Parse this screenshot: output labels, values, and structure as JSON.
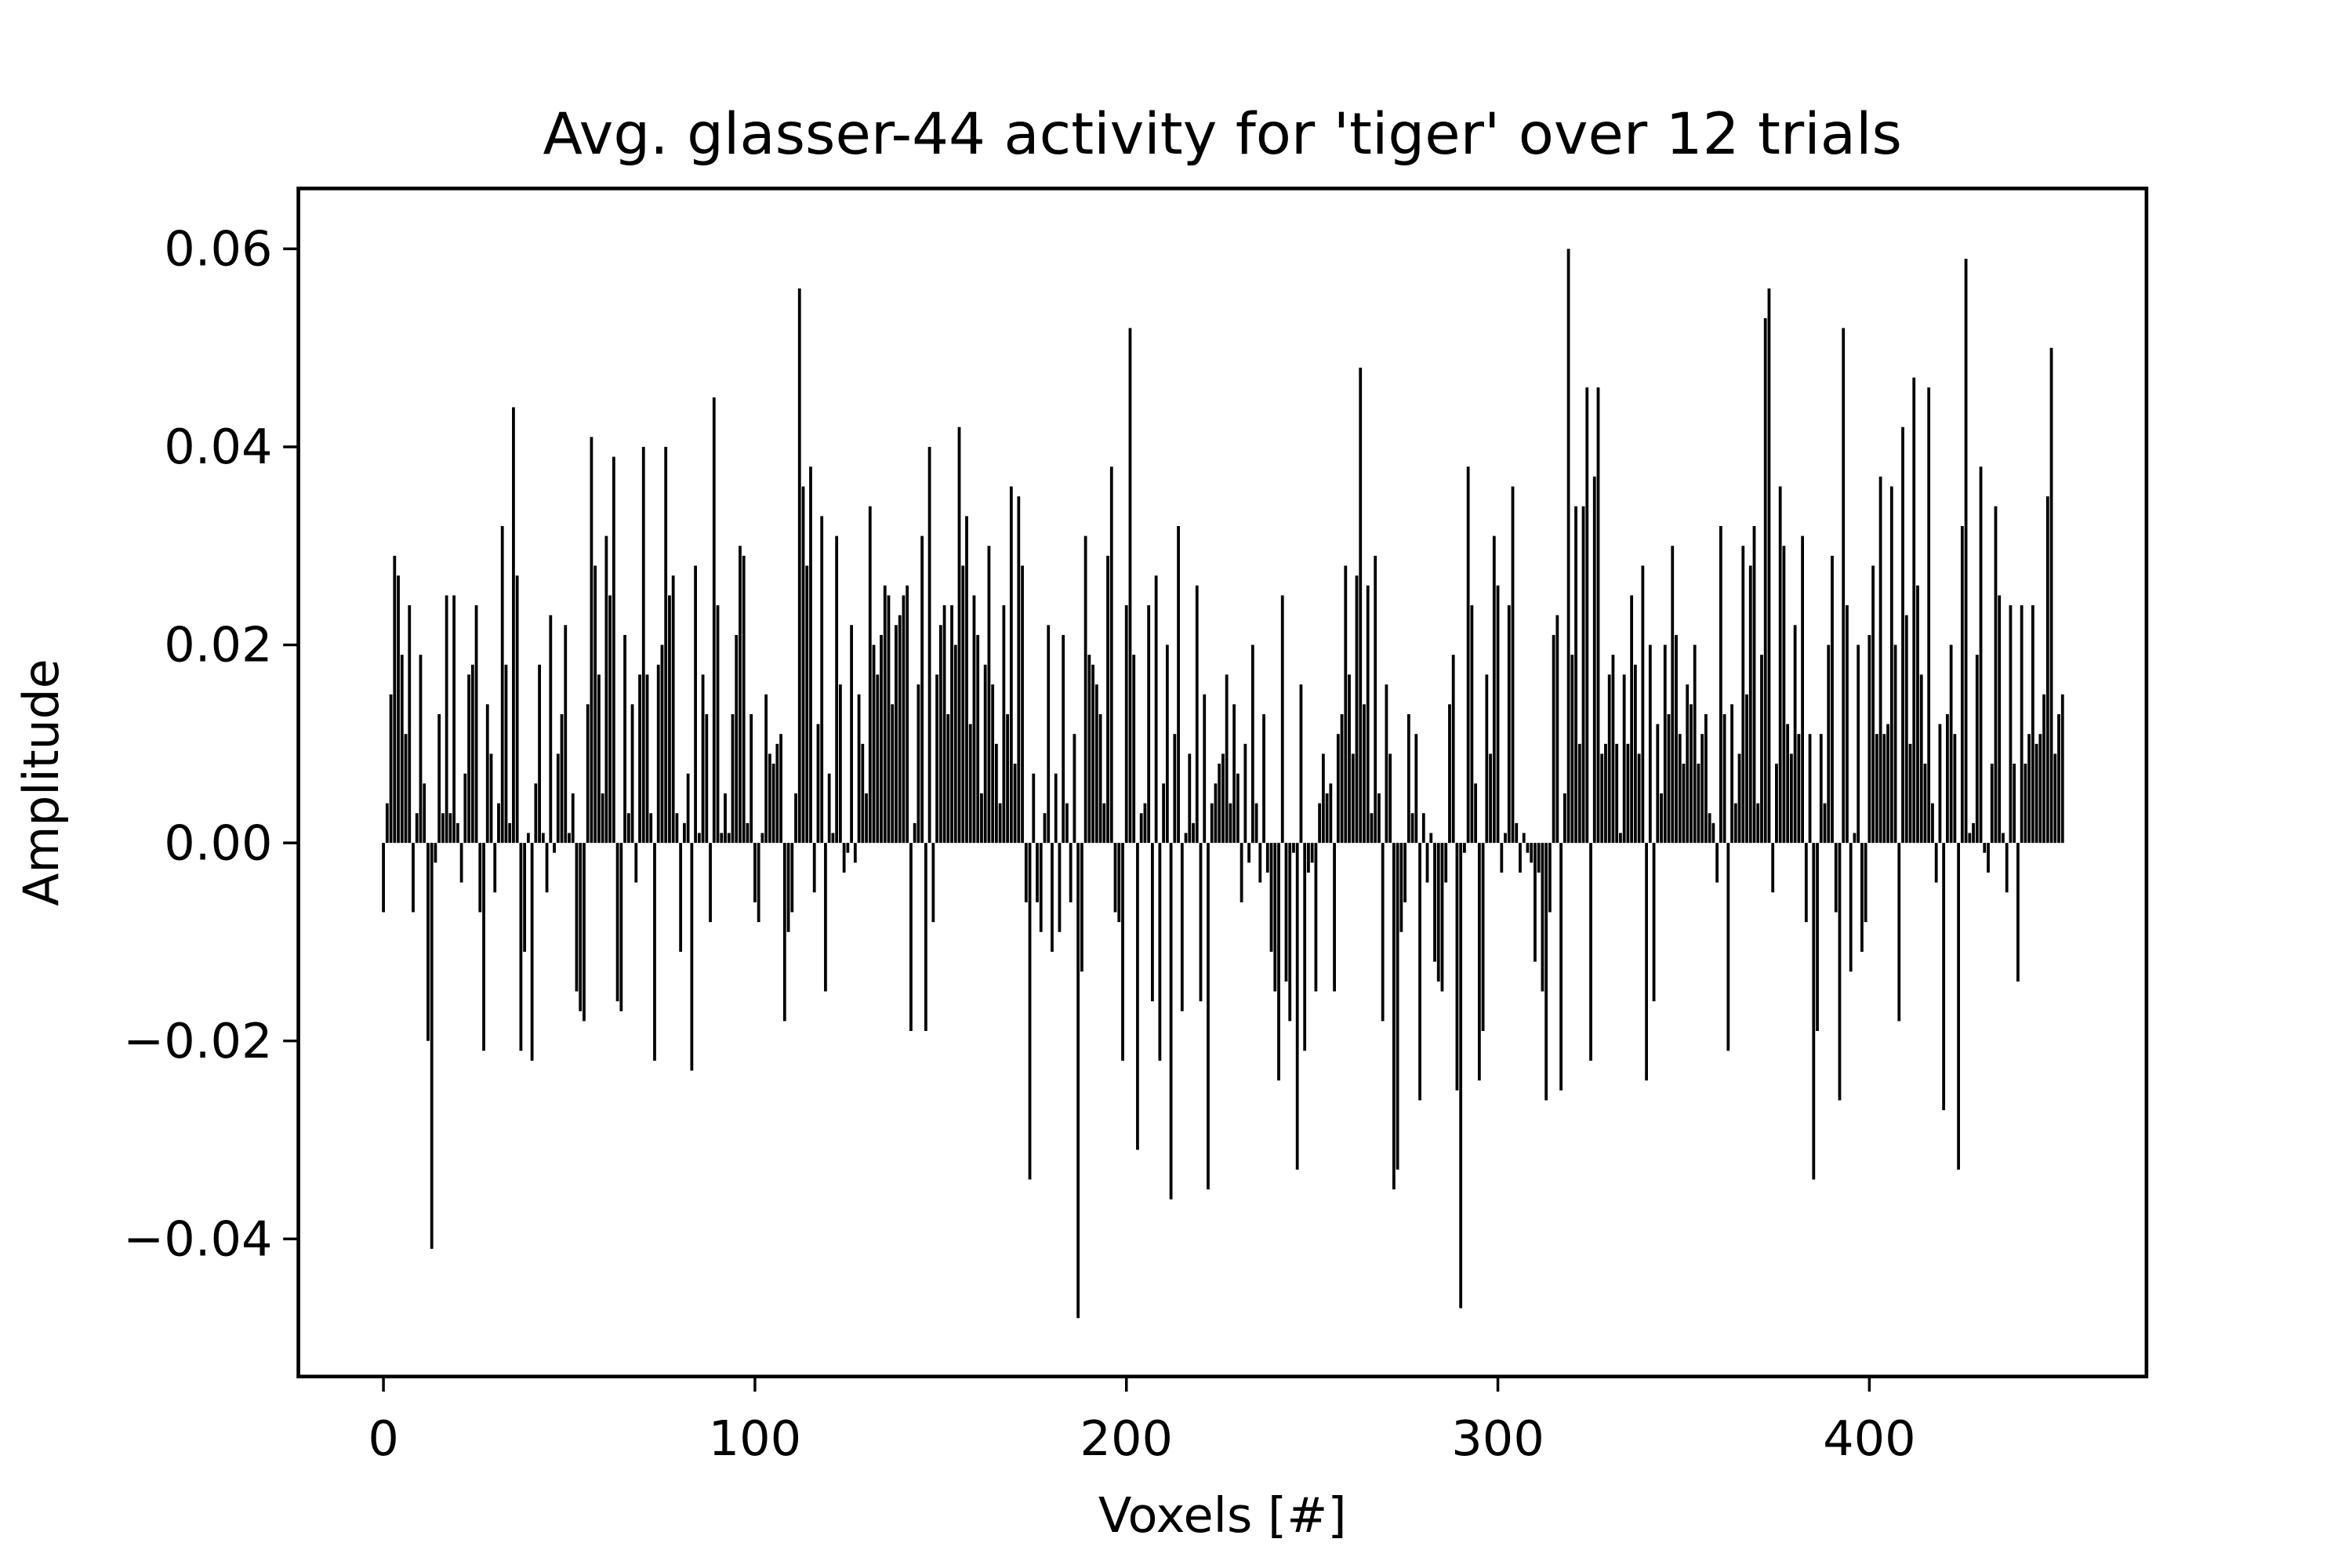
{
  "chart_data": {
    "type": "bar",
    "title": "Avg. glasser-44 activity for 'tiger' over 12 trials",
    "xlabel": "Voxels [#]",
    "ylabel": "Amplitude",
    "color": "#000000",
    "xlim": [
      -22.9,
      474.6
    ],
    "ylim": [
      -0.0539,
      0.0661
    ],
    "xticks": [
      0,
      100,
      200,
      300,
      400
    ],
    "yticks": [
      {
        "value": -0.04,
        "label": "−0.04"
      },
      {
        "value": -0.02,
        "label": "−0.02"
      },
      {
        "value": 0,
        "label": "0.00"
      },
      {
        "value": 0.02,
        "label": "0.02"
      },
      {
        "value": 0.04,
        "label": "0.04"
      },
      {
        "value": 0.06,
        "label": "0.06"
      }
    ],
    "values": [
      -0.007,
      0.004,
      0.015,
      0.029,
      0.027,
      0.019,
      0.011,
      0.024,
      -0.007,
      0.003,
      0.019,
      0.006,
      -0.02,
      -0.041,
      -0.002,
      0.013,
      0.003,
      0.025,
      0.003,
      0.025,
      0.002,
      -0.004,
      0.007,
      0.017,
      0.018,
      0.024,
      -0.007,
      -0.021,
      0.014,
      0.009,
      -0.005,
      0.004,
      0.032,
      0.018,
      0.002,
      0.044,
      0.027,
      -0.021,
      -0.011,
      0.001,
      -0.022,
      0.006,
      0.018,
      0.001,
      -0.005,
      0.023,
      -0.001,
      0.009,
      0.013,
      0.022,
      0.001,
      0.005,
      -0.015,
      -0.017,
      -0.018,
      0.014,
      0.041,
      0.028,
      0.017,
      0.005,
      0.031,
      0.025,
      0.039,
      -0.016,
      -0.017,
      0.021,
      0.003,
      0.014,
      -0.004,
      0.017,
      0.04,
      0.017,
      0.003,
      -0.022,
      0.018,
      0.02,
      0.04,
      0.025,
      0.027,
      0.003,
      -0.011,
      0.002,
      0.007,
      -0.023,
      0.028,
      0.001,
      0.017,
      0.013,
      -0.008,
      0.045,
      0.024,
      0.001,
      0.005,
      0.001,
      0.013,
      0.021,
      0.03,
      0.029,
      0.002,
      0.013,
      -0.006,
      -0.008,
      0.001,
      0.015,
      0.009,
      0.008,
      0.01,
      0.011,
      -0.018,
      -0.009,
      -0.007,
      0.005,
      0.056,
      0.036,
      0.028,
      0.038,
      -0.005,
      0.012,
      0.033,
      -0.015,
      0.007,
      0.001,
      0.031,
      0.016,
      -0.003,
      -0.001,
      0.022,
      -0.002,
      0.015,
      0.01,
      0.005,
      0.034,
      0.02,
      0.017,
      0.021,
      0.026,
      0.025,
      0.014,
      0.022,
      0.023,
      0.025,
      0.026,
      -0.019,
      0.002,
      0.016,
      0.031,
      -0.019,
      0.04,
      -0.008,
      0.017,
      0.022,
      0.024,
      0.013,
      0.024,
      0.02,
      0.042,
      0.028,
      0.033,
      0.012,
      0.025,
      0.021,
      0.005,
      0.018,
      0.03,
      0.016,
      0.01,
      0.004,
      0.024,
      0.013,
      0.036,
      0.008,
      0.035,
      0.028,
      -0.006,
      -0.034,
      0.007,
      -0.006,
      -0.009,
      0.003,
      0.022,
      -0.011,
      0.007,
      -0.009,
      0.021,
      0.004,
      -0.006,
      0.011,
      -0.048,
      -0.013,
      0.031,
      0.019,
      0.018,
      0.016,
      0.013,
      0.004,
      0.029,
      0.038,
      -0.007,
      -0.008,
      -0.022,
      0.024,
      0.052,
      0.019,
      -0.031,
      0.003,
      0.004,
      0.024,
      -0.016,
      0.027,
      -0.022,
      0.006,
      0.02,
      -0.036,
      0.011,
      0.032,
      -0.017,
      0.001,
      0.009,
      0.002,
      0.026,
      -0.016,
      0.015,
      -0.035,
      0.004,
      0.006,
      0.008,
      0.009,
      0.017,
      0.004,
      0.014,
      0.007,
      -0.006,
      0.01,
      -0.002,
      0.02,
      0.004,
      -0.004,
      0.013,
      -0.003,
      -0.011,
      -0.015,
      -0.024,
      0.025,
      -0.014,
      -0.018,
      -0.001,
      -0.033,
      0.016,
      -0.021,
      -0.003,
      -0.002,
      -0.015,
      0.004,
      0.009,
      0.005,
      0.006,
      -0.015,
      0.011,
      0.013,
      0.028,
      0.017,
      0.009,
      0.027,
      0.048,
      0.014,
      0.026,
      0.003,
      0.029,
      0.005,
      -0.018,
      0.016,
      0.009,
      -0.035,
      -0.033,
      -0.009,
      -0.006,
      0.013,
      0.003,
      0.011,
      -0.026,
      0.003,
      -0.004,
      0.001,
      -0.012,
      -0.014,
      -0.015,
      -0.004,
      0.014,
      0.019,
      -0.025,
      -0.047,
      -0.001,
      0.038,
      0.024,
      0.006,
      -0.024,
      -0.019,
      0.017,
      0.009,
      0.031,
      0.026,
      -0.003,
      0.001,
      0.024,
      0.036,
      0.002,
      -0.003,
      0.001,
      -0.001,
      -0.002,
      -0.012,
      -0.003,
      -0.015,
      -0.026,
      -0.007,
      0.021,
      0.023,
      -0.025,
      0.005,
      0.06,
      0.019,
      0.034,
      0.01,
      0.034,
      0.046,
      -0.022,
      0.037,
      0.046,
      0.009,
      0.01,
      0.017,
      0.019,
      0.01,
      0.001,
      0.017,
      0.01,
      0.025,
      0.018,
      0.009,
      0.028,
      -0.024,
      0.02,
      -0.016,
      0.012,
      0.005,
      0.02,
      0.013,
      0.03,
      0.021,
      0.011,
      0.008,
      0.016,
      0.014,
      0.02,
      0.008,
      0.011,
      0.013,
      0.003,
      0.002,
      -0.004,
      0.032,
      0.013,
      -0.021,
      0.014,
      0.004,
      0.009,
      0.03,
      0.015,
      0.028,
      0.032,
      0.004,
      0.019,
      0.053,
      0.056,
      -0.005,
      0.008,
      0.036,
      0.03,
      0.012,
      0.009,
      0.022,
      0.011,
      0.031,
      -0.008,
      0.011,
      -0.034,
      -0.019,
      0.011,
      0.004,
      0.02,
      0.029,
      -0.007,
      -0.026,
      0.052,
      0.024,
      -0.013,
      0.001,
      0.02,
      -0.011,
      -0.008,
      0.021,
      0.028,
      0.011,
      0.037,
      0.011,
      0.012,
      0.036,
      0.02,
      -0.018,
      0.042,
      0.023,
      0.01,
      0.047,
      0.026,
      0.017,
      0.008,
      0.046,
      0.004,
      -0.004,
      0.012,
      -0.027,
      0.013,
      0.02,
      0.011,
      -0.033,
      0.032,
      0.059,
      0.001,
      0.002,
      0.019,
      0.038,
      -0.001,
      -0.003,
      0.008,
      0.034,
      0.025,
      0.001,
      -0.005,
      0.024,
      0.008,
      -0.014,
      0.024,
      0.008,
      0.011,
      0.024,
      0.01,
      0.011,
      0.015,
      0.035,
      0.05,
      0.009,
      0.013,
      0.015
    ]
  }
}
